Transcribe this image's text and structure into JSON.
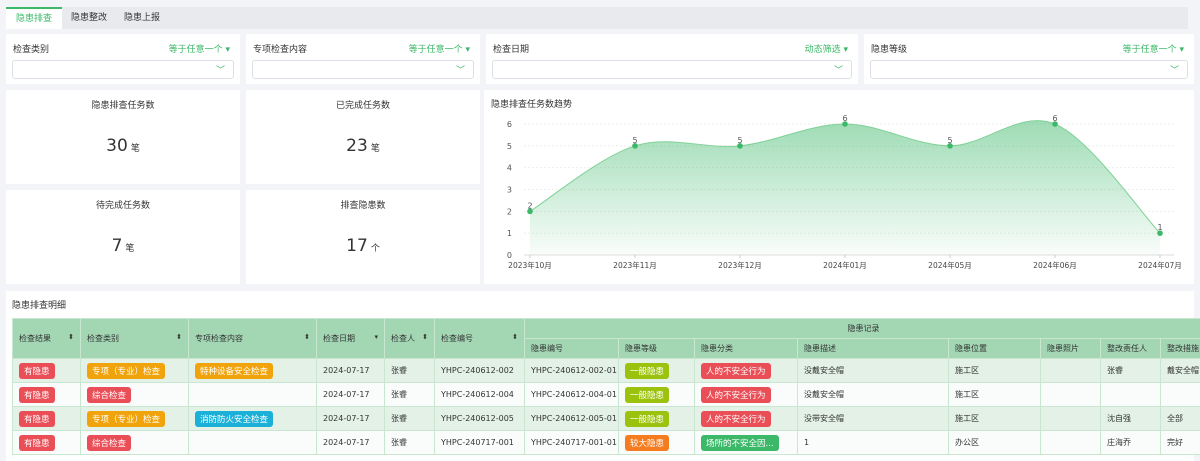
{
  "tabs": [
    "隐患排查",
    "隐患整改",
    "隐患上报"
  ],
  "filters": [
    {
      "label": "检查类别",
      "mode": "等于任意一个 ▾"
    },
    {
      "label": "专项检查内容",
      "mode": "等于任意一个 ▾"
    },
    {
      "label": "检查日期",
      "mode": "动态筛选 ▾"
    },
    {
      "label": "隐患等级",
      "mode": "等于任意一个 ▾"
    }
  ],
  "stats": [
    {
      "title": "隐患排查任务数",
      "value": "30",
      "unit": "笔"
    },
    {
      "title": "已完成任务数",
      "value": "23",
      "unit": "笔"
    },
    {
      "title": "待完成任务数",
      "value": "7",
      "unit": "笔"
    },
    {
      "title": "排查隐患数",
      "value": "17",
      "unit": "个"
    }
  ],
  "chart_data": {
    "type": "area",
    "title": "隐患排查任务数趋势",
    "categories": [
      "2023年10月",
      "2023年11月",
      "2023年12月",
      "2024年01月",
      "2024年05月",
      "2024年06月",
      "2024年07月"
    ],
    "values": [
      2,
      5,
      5,
      6,
      5,
      6,
      1
    ],
    "yticks": [
      "0",
      "1",
      "2",
      "3",
      "4",
      "5",
      "6"
    ],
    "ylim": [
      0,
      6
    ],
    "smooth": true,
    "color": "#3cb869"
  },
  "table": {
    "title": "隐患排查明细",
    "group_header": "隐患记录",
    "headers": [
      "检查结果",
      "检查类别",
      "专项检查内容",
      "检查日期",
      "检查人",
      "检查编号"
    ],
    "sub_headers": [
      "隐患编号",
      "隐患等级",
      "隐患分类",
      "隐患描述",
      "隐患位置",
      "隐患照片",
      "整改责任人",
      "整改措施"
    ],
    "rows": [
      {
        "result": "有隐患",
        "category": "专项（专业）检查",
        "category_color": "#f0a30a",
        "special": "特种设备安全检查",
        "special_color": "#f0a30a",
        "date": "2024-07-17",
        "inspector": "张睿",
        "code": "YHPC-240612-002",
        "hazard_code": "YHPC-240612-002-01",
        "level": "一般隐患",
        "level_color": "#9bc20c",
        "type": "人的不安全行为",
        "type_color": "#ea4f57",
        "desc": "没戴安全帽",
        "location": "施工区",
        "photo": "",
        "owner": "张睿",
        "measure": "戴安全帽"
      },
      {
        "result": "有隐患",
        "category": "综合检查",
        "category_color": "#ea4f57",
        "special": "",
        "special_color": "",
        "date": "2024-07-17",
        "inspector": "张睿",
        "code": "YHPC-240612-004",
        "hazard_code": "YHPC-240612-004-01",
        "level": "一般隐患",
        "level_color": "#9bc20c",
        "type": "人的不安全行为",
        "type_color": "#ea4f57",
        "desc": "没戴安全帽",
        "location": "施工区",
        "photo": "",
        "owner": "",
        "measure": ""
      },
      {
        "result": "有隐患",
        "category": "专项（专业）检查",
        "category_color": "#f0a30a",
        "special": "消防防火安全检查",
        "special_color": "#1bb0d8",
        "date": "2024-07-17",
        "inspector": "张睿",
        "code": "YHPC-240612-005",
        "hazard_code": "YHPC-240612-005-01",
        "level": "一般隐患",
        "level_color": "#9bc20c",
        "type": "人的不安全行为",
        "type_color": "#ea4f57",
        "desc": "没带安全帽",
        "location": "施工区",
        "photo": "",
        "owner": "沈自强",
        "measure": "全部"
      },
      {
        "result": "有隐患",
        "category": "综合检查",
        "category_color": "#ea4f57",
        "special": "",
        "special_color": "",
        "date": "2024-07-17",
        "inspector": "张睿",
        "code": "YHPC-240717-001",
        "hazard_code": "YHPC-240717-001-01",
        "level": "较大隐患",
        "level_color": "#f57c1f",
        "type": "场所的不安全因...",
        "type_color": "#3cb869",
        "desc": "1",
        "location": "办公区",
        "photo": "",
        "owner": "庄海乔",
        "measure": "完好"
      }
    ]
  }
}
